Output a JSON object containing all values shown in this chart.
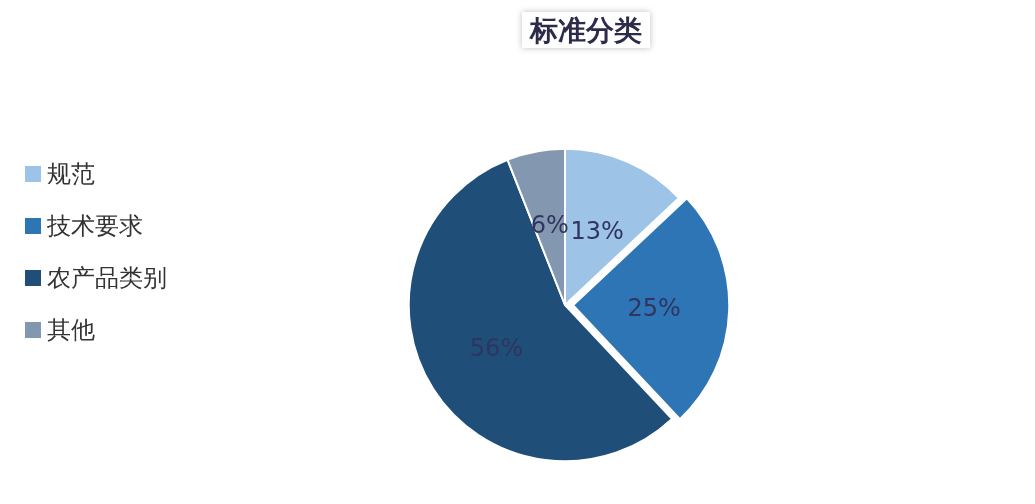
{
  "chart_data": {
    "type": "pie",
    "title": "标准分类",
    "categories": [
      "规范",
      "技术要求",
      "农产品类别",
      "其他"
    ],
    "values": [
      13,
      25,
      56,
      6
    ],
    "colors": [
      "#9dc3e6",
      "#2e75b6",
      "#1f4e79",
      "#8497b0"
    ],
    "value_labels": [
      "13%",
      "25%",
      "56%",
      "6%"
    ],
    "legend": "left"
  }
}
